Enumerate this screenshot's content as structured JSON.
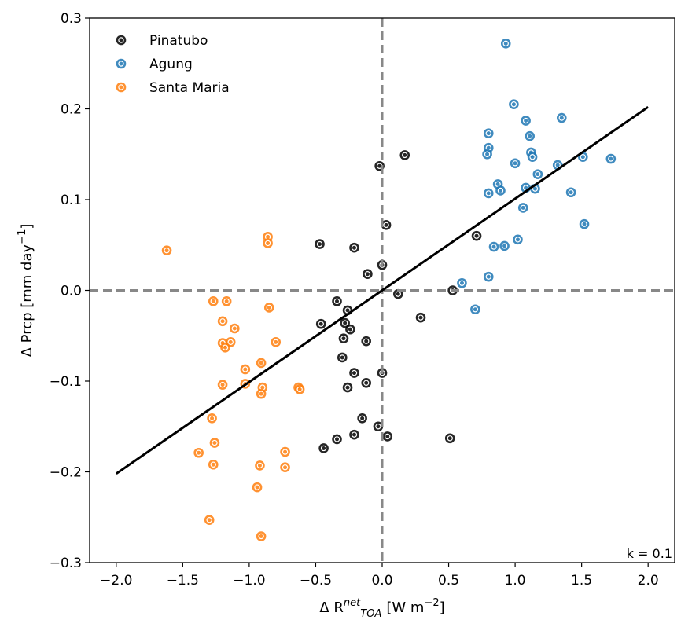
{
  "chart_data": {
    "type": "scatter",
    "xlabel_prefix": "Δ R",
    "xlabel_sup": "net",
    "xlabel_sub": "TOA",
    "xlabel_unit": "[W m",
    "xlabel_unit_exp": "−2",
    "xlabel_unit_close": "]",
    "ylabel_prefix": "Δ Prcp [mm day",
    "ylabel_exp": "−1",
    "ylabel_close": "]",
    "xlim": [
      -2.2,
      2.2
    ],
    "ylim": [
      -0.3,
      0.3
    ],
    "xticks": [
      -2.0,
      -1.5,
      -1.0,
      -0.5,
      0.0,
      0.5,
      1.0,
      1.5,
      2.0
    ],
    "xtick_labels": [
      "−2.0",
      "−1.5",
      "−1.0",
      "−0.5",
      "0.0",
      "0.5",
      "1.0",
      "1.5",
      "2.0"
    ],
    "yticks": [
      -0.3,
      -0.2,
      -0.1,
      0.0,
      0.1,
      0.2,
      0.3
    ],
    "ytick_labels": [
      "−0.3",
      "−0.2",
      "−0.1",
      "0.0",
      "0.1",
      "0.2",
      "0.3"
    ],
    "grid": false,
    "legend_position": "top-left",
    "annotation": "k = 0.1",
    "reference_lines": {
      "x": 0,
      "y": 0,
      "color": "#888888",
      "style": "dashed"
    },
    "fit_line": {
      "x": [
        -2.0,
        2.0
      ],
      "y": [
        -0.202,
        0.202
      ],
      "color": "#000000"
    },
    "series": [
      {
        "name": "Pinatubo",
        "color": "#000000",
        "points": [
          [
            -0.02,
            0.137
          ],
          [
            0.17,
            0.149
          ],
          [
            0.03,
            0.072
          ],
          [
            -0.47,
            0.051
          ],
          [
            -0.21,
            0.047
          ],
          [
            -0.11,
            0.018
          ],
          [
            0.0,
            0.028
          ],
          [
            0.71,
            0.06
          ],
          [
            0.12,
            -0.004
          ],
          [
            0.53,
            0.0
          ],
          [
            -0.34,
            -0.012
          ],
          [
            -0.46,
            -0.037
          ],
          [
            -0.26,
            -0.022
          ],
          [
            -0.28,
            -0.036
          ],
          [
            -0.24,
            -0.043
          ],
          [
            0.29,
            -0.03
          ],
          [
            -0.29,
            -0.053
          ],
          [
            -0.12,
            -0.056
          ],
          [
            -0.3,
            -0.074
          ],
          [
            -0.21,
            -0.091
          ],
          [
            0.0,
            -0.091
          ],
          [
            -0.12,
            -0.102
          ],
          [
            -0.26,
            -0.107
          ],
          [
            -0.15,
            -0.141
          ],
          [
            -0.03,
            -0.15
          ],
          [
            0.04,
            -0.161
          ],
          [
            -0.21,
            -0.159
          ],
          [
            -0.34,
            -0.164
          ],
          [
            -0.44,
            -0.174
          ],
          [
            0.51,
            -0.163
          ]
        ]
      },
      {
        "name": "Agung",
        "color": "#1f77b4",
        "points": [
          [
            0.93,
            0.272
          ],
          [
            0.99,
            0.205
          ],
          [
            1.35,
            0.19
          ],
          [
            1.08,
            0.187
          ],
          [
            0.8,
            0.173
          ],
          [
            1.11,
            0.17
          ],
          [
            0.8,
            0.157
          ],
          [
            0.79,
            0.15
          ],
          [
            1.12,
            0.152
          ],
          [
            1.13,
            0.147
          ],
          [
            1.51,
            0.147
          ],
          [
            1.72,
            0.145
          ],
          [
            1.0,
            0.14
          ],
          [
            1.32,
            0.138
          ],
          [
            1.17,
            0.128
          ],
          [
            0.87,
            0.117
          ],
          [
            1.08,
            0.113
          ],
          [
            1.15,
            0.112
          ],
          [
            0.89,
            0.11
          ],
          [
            0.8,
            0.107
          ],
          [
            1.42,
            0.108
          ],
          [
            1.06,
            0.091
          ],
          [
            1.52,
            0.073
          ],
          [
            1.02,
            0.056
          ],
          [
            0.84,
            0.048
          ],
          [
            0.92,
            0.049
          ],
          [
            0.6,
            0.008
          ],
          [
            0.8,
            0.015
          ],
          [
            0.7,
            -0.021
          ]
        ]
      },
      {
        "name": "Santa Maria",
        "color": "#ff7f0e",
        "points": [
          [
            -1.62,
            0.044
          ],
          [
            -0.86,
            0.059
          ],
          [
            -0.86,
            0.052
          ],
          [
            -1.27,
            -0.012
          ],
          [
            -1.17,
            -0.012
          ],
          [
            -0.85,
            -0.019
          ],
          [
            -1.2,
            -0.034
          ],
          [
            -1.11,
            -0.042
          ],
          [
            -0.8,
            -0.057
          ],
          [
            -1.2,
            -0.058
          ],
          [
            -1.14,
            -0.057
          ],
          [
            -1.18,
            -0.063
          ],
          [
            -0.91,
            -0.08
          ],
          [
            -1.03,
            -0.087
          ],
          [
            -1.2,
            -0.104
          ],
          [
            -1.03,
            -0.103
          ],
          [
            -0.63,
            -0.107
          ],
          [
            -0.62,
            -0.109
          ],
          [
            -0.9,
            -0.107
          ],
          [
            -0.91,
            -0.114
          ],
          [
            -1.28,
            -0.141
          ],
          [
            -1.26,
            -0.168
          ],
          [
            -0.73,
            -0.178
          ],
          [
            -1.38,
            -0.179
          ],
          [
            -1.27,
            -0.192
          ],
          [
            -0.92,
            -0.193
          ],
          [
            -0.73,
            -0.195
          ],
          [
            -0.94,
            -0.217
          ],
          [
            -1.3,
            -0.253
          ],
          [
            -0.91,
            -0.271
          ]
        ]
      }
    ]
  }
}
